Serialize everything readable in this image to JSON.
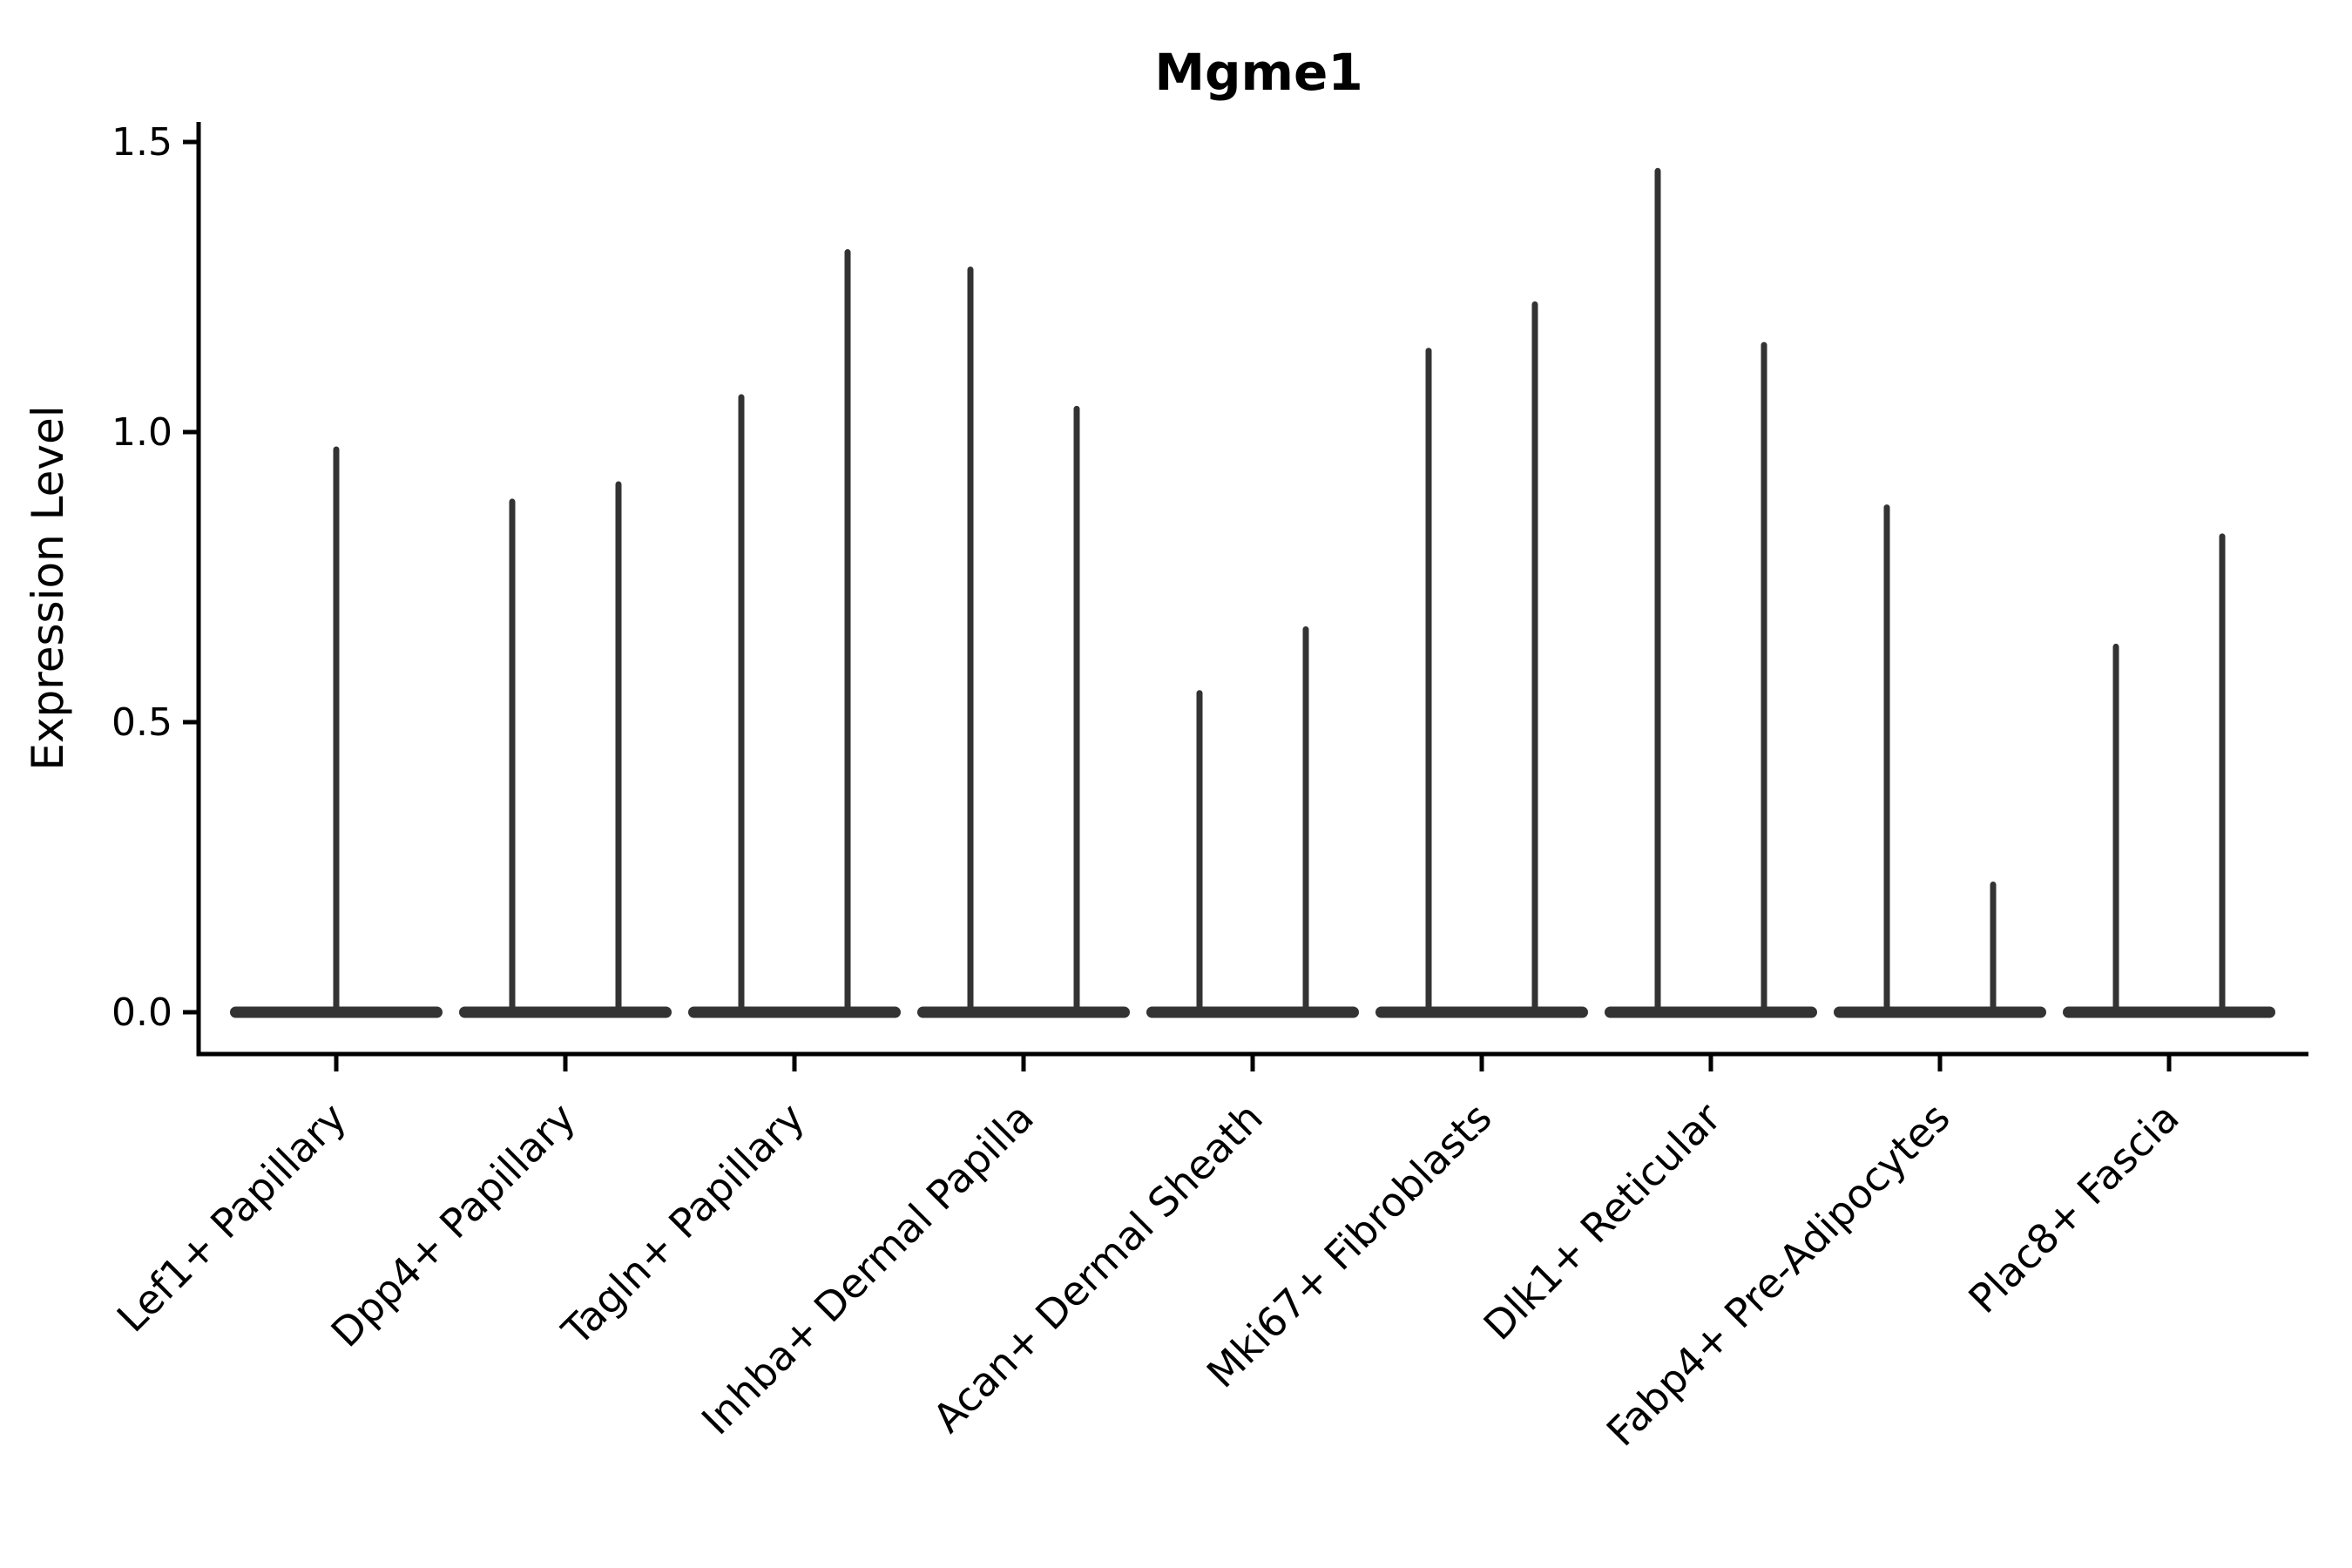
{
  "chart_data": {
    "type": "violin",
    "title": "Mgme1",
    "xlabel": "",
    "ylabel": "Expression Level",
    "ylim": [
      0,
      1.5
    ],
    "yticks": [
      0.0,
      0.5,
      1.0,
      1.5
    ],
    "grid": false,
    "legend": "none",
    "x_tick_label_rotation_deg": 45,
    "categories": [
      "Lef1+ Papillary",
      "Dpp4+ Papillary",
      "Tagln+ Papillary",
      "Inhba+ Dermal Papilla",
      "Acan+ Dermal Sheath",
      "Mki67+ Fibroblasts",
      "Dlk1+ Reticular",
      "Fabp4+ Pre-Adipocytes",
      "Plac8+ Fascia"
    ],
    "violins": [
      {
        "category": "Lef1+ Papillary",
        "group_maxima": [
          0.97
        ]
      },
      {
        "category": "Dpp4+ Papillary",
        "group_maxima": [
          0.88,
          0.91
        ]
      },
      {
        "category": "Tagln+ Papillary",
        "group_maxima": [
          1.06,
          1.31
        ]
      },
      {
        "category": "Inhba+ Dermal Papilla",
        "group_maxima": [
          1.28,
          1.04
        ]
      },
      {
        "category": "Acan+ Dermal Sheath",
        "group_maxima": [
          0.55,
          0.66
        ]
      },
      {
        "category": "Mki67+ Fibroblasts",
        "group_maxima": [
          1.14,
          1.22
        ]
      },
      {
        "category": "Dlk1+ Reticular",
        "group_maxima": [
          1.45,
          1.15
        ]
      },
      {
        "category": "Fabp4+ Pre-Adipocytes",
        "group_maxima": [
          0.87,
          0.22
        ]
      },
      {
        "category": "Plac8+ Fascia",
        "group_maxima": [
          0.63,
          0.82
        ]
      }
    ],
    "colors": {
      "violin": "#333333",
      "axis": "#000000",
      "text": "#000000",
      "background": "#ffffff"
    }
  }
}
